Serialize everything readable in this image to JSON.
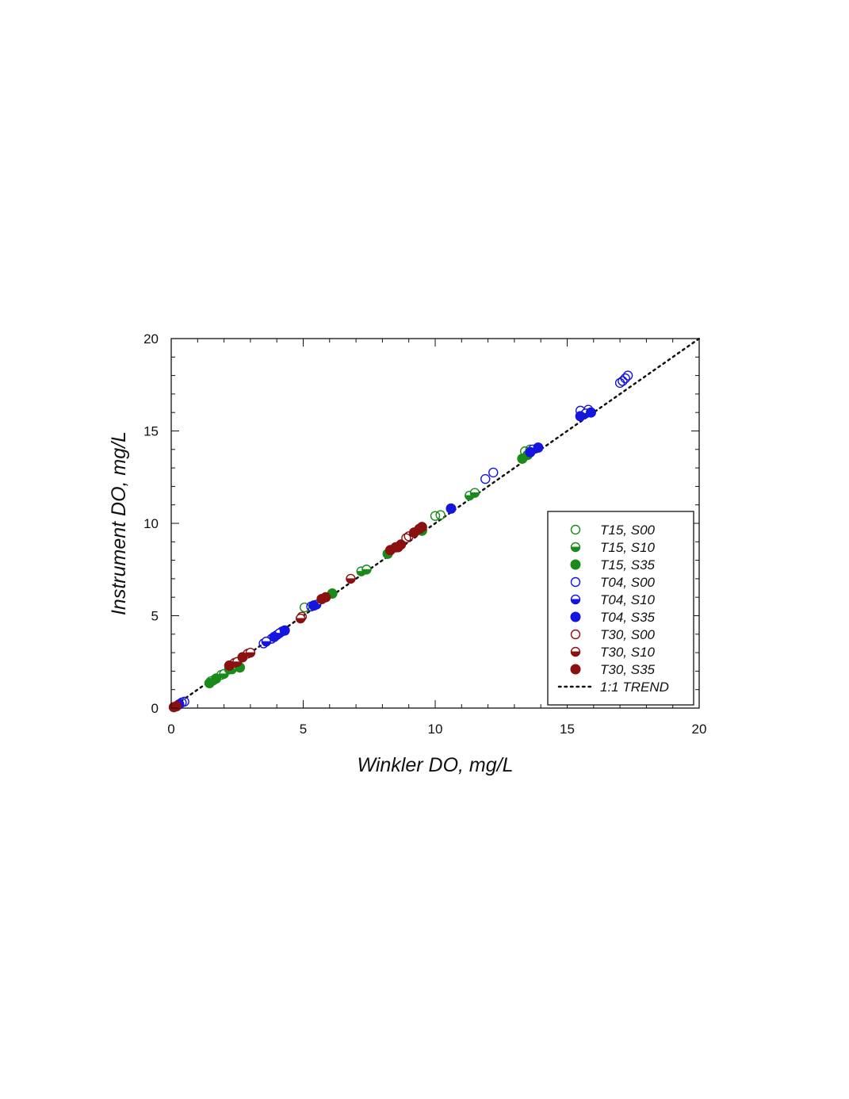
{
  "chart_data": {
    "type": "scatter",
    "xlabel": "Winkler DO, mg/L",
    "ylabel": "Instrument DO, mg/L",
    "xlim": [
      0,
      20
    ],
    "ylim": [
      0,
      20
    ],
    "x_ticks": [
      "0",
      "5",
      "10",
      "15",
      "20"
    ],
    "y_ticks": [
      "0",
      "5",
      "10",
      "15",
      "20"
    ],
    "grid": false,
    "legend_position": "bottom-right",
    "series": [
      {
        "name": "T15, S00",
        "color": "#1a8a1a",
        "marker": "open-circle",
        "points": [
          [
            1.6,
            1.5
          ],
          [
            1.9,
            1.8
          ],
          [
            5.05,
            5.45
          ],
          [
            10.0,
            10.4
          ],
          [
            10.2,
            10.45
          ],
          [
            13.4,
            13.9
          ],
          [
            13.6,
            14.0
          ]
        ]
      },
      {
        "name": "T15, S10",
        "color": "#1a8a1a",
        "marker": "half-circle",
        "points": [
          [
            1.5,
            1.45
          ],
          [
            2.0,
            1.85
          ],
          [
            2.3,
            2.1
          ],
          [
            7.2,
            7.4
          ],
          [
            7.4,
            7.5
          ],
          [
            9.4,
            9.65
          ],
          [
            11.3,
            11.5
          ],
          [
            11.5,
            11.65
          ]
        ]
      },
      {
        "name": "T15, S35",
        "color": "#1a8a1a",
        "marker": "filled-circle",
        "points": [
          [
            1.45,
            1.35
          ],
          [
            1.7,
            1.6
          ],
          [
            2.2,
            2.1
          ],
          [
            2.6,
            2.2
          ],
          [
            6.1,
            6.2
          ],
          [
            8.2,
            8.35
          ],
          [
            9.5,
            9.6
          ],
          [
            13.3,
            13.5
          ],
          [
            13.5,
            13.7
          ]
        ]
      },
      {
        "name": "T04, S00",
        "color": "#1515e0",
        "marker": "open-circle",
        "points": [
          [
            0.4,
            0.3
          ],
          [
            0.5,
            0.35
          ],
          [
            3.5,
            3.5
          ],
          [
            3.8,
            3.75
          ],
          [
            4.0,
            3.95
          ],
          [
            4.2,
            4.15
          ],
          [
            5.3,
            5.5
          ],
          [
            11.9,
            12.4
          ],
          [
            12.2,
            12.75
          ],
          [
            15.5,
            16.1
          ],
          [
            15.8,
            16.15
          ],
          [
            17.0,
            17.6
          ],
          [
            17.1,
            17.7
          ],
          [
            17.2,
            17.85
          ],
          [
            17.3,
            18.0
          ]
        ]
      },
      {
        "name": "T04, S10",
        "color": "#1515e0",
        "marker": "half-circle",
        "points": [
          [
            3.6,
            3.6
          ],
          [
            4.1,
            4.05
          ],
          [
            5.5,
            5.6
          ],
          [
            13.7,
            14.0
          ],
          [
            15.7,
            15.95
          ]
        ]
      },
      {
        "name": "T04, S35",
        "color": "#1515e0",
        "marker": "filled-circle",
        "points": [
          [
            0.3,
            0.2
          ],
          [
            3.9,
            3.85
          ],
          [
            4.3,
            4.2
          ],
          [
            5.4,
            5.55
          ],
          [
            10.6,
            10.8
          ],
          [
            13.6,
            13.85
          ],
          [
            13.9,
            14.1
          ],
          [
            15.5,
            15.8
          ],
          [
            15.9,
            16.0
          ]
        ]
      },
      {
        "name": "T30, S00",
        "color": "#8b1010",
        "marker": "open-circle",
        "points": [
          [
            2.4,
            2.45
          ],
          [
            2.9,
            2.95
          ],
          [
            4.95,
            4.95
          ],
          [
            8.9,
            9.2
          ],
          [
            9.0,
            9.3
          ]
        ]
      },
      {
        "name": "T30, S10",
        "color": "#8b1010",
        "marker": "half-circle",
        "points": [
          [
            2.5,
            2.5
          ],
          [
            3.0,
            3.0
          ],
          [
            4.9,
            4.85
          ],
          [
            6.8,
            7.0
          ],
          [
            8.6,
            8.7
          ]
        ]
      },
      {
        "name": "T30, S35",
        "color": "#8b1010",
        "marker": "filled-circle",
        "points": [
          [
            0.1,
            0.05
          ],
          [
            0.2,
            0.1
          ],
          [
            2.2,
            2.3
          ],
          [
            2.7,
            2.75
          ],
          [
            5.7,
            5.9
          ],
          [
            5.85,
            6.0
          ],
          [
            8.3,
            8.55
          ],
          [
            8.5,
            8.7
          ],
          [
            8.7,
            8.85
          ],
          [
            9.2,
            9.5
          ],
          [
            9.4,
            9.7
          ],
          [
            9.5,
            9.8
          ]
        ]
      },
      {
        "name": "1:1 TREND",
        "color": "#111111",
        "marker": "dotted-line",
        "points": [
          [
            0,
            0
          ],
          [
            20,
            20
          ]
        ]
      }
    ]
  }
}
